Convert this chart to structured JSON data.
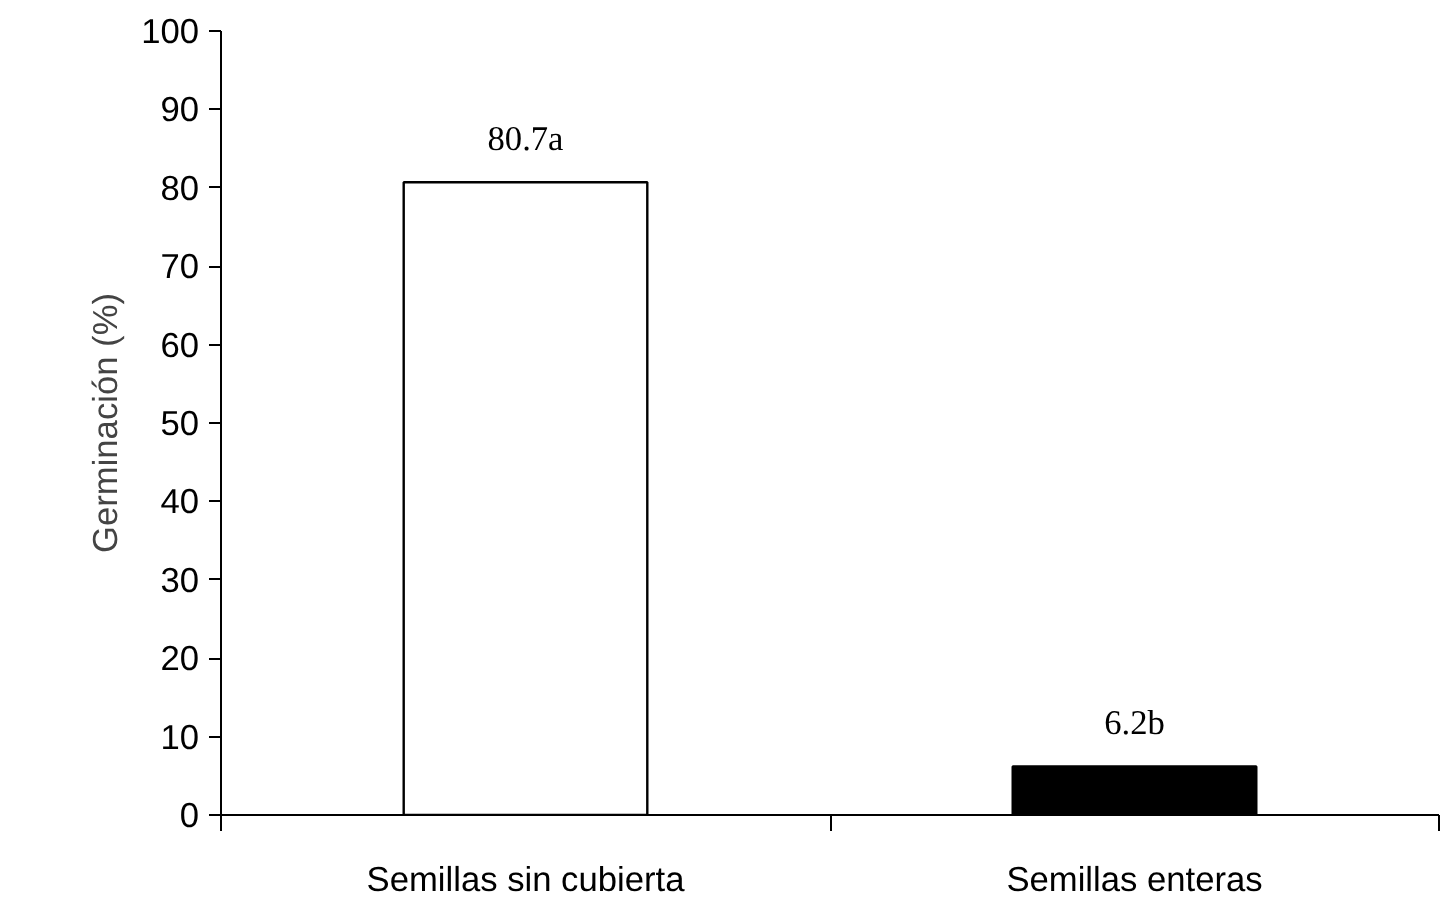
{
  "chart_data": {
    "type": "bar",
    "ylabel": "Germinación (%)",
    "categories": [
      "Semillas sin cubierta",
      "Semillas enteras"
    ],
    "values": [
      80.7,
      6.2
    ],
    "colors": [
      "#ffffff",
      "#000000"
    ],
    "value_labels": [
      "80.7a",
      "6.2b"
    ],
    "ylim": [
      0,
      100
    ],
    "yticks": [
      0,
      10,
      20,
      30,
      40,
      50,
      60,
      70,
      80,
      90,
      100
    ]
  }
}
